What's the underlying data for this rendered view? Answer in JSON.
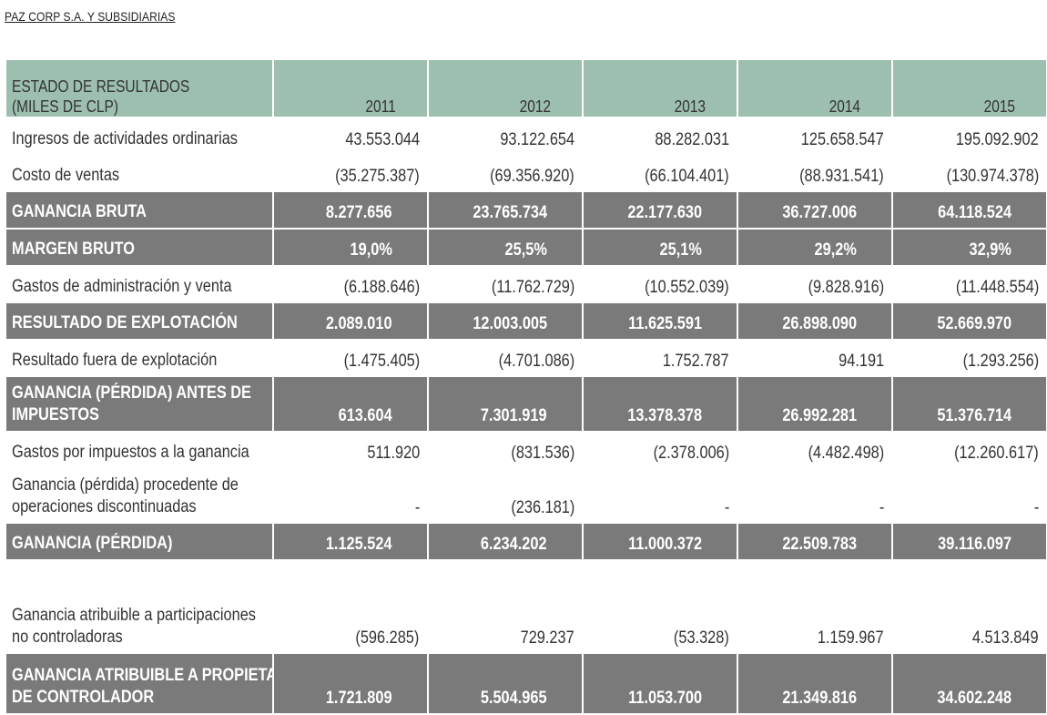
{
  "company": "PAZ CORP S.A. Y SUBSIDIARIAS",
  "header": {
    "label_line1": "ESTADO DE RESULTADOS",
    "label_line2": "(MILES DE CLP)",
    "years": [
      "2011",
      "2012",
      "2013",
      "2014",
      "2015"
    ]
  },
  "rows": [
    {
      "label": [
        "Ingresos de actividades ordinarias"
      ],
      "values": [
        "43.553.044",
        "93.122.654",
        "88.282.031",
        "125.658.547",
        "195.092.902"
      ],
      "highlight": false
    },
    {
      "label": [
        "Costo de ventas"
      ],
      "values": [
        "(35.275.387)",
        "(69.356.920)",
        "(66.104.401)",
        "(88.931.541)",
        "(130.974.378)"
      ],
      "highlight": false
    },
    {
      "label": [
        "GANANCIA BRUTA"
      ],
      "values": [
        "8.277.656",
        "23.765.734",
        "22.177.630",
        "36.727.006",
        "64.118.524"
      ],
      "highlight": true
    },
    {
      "label": [
        "MARGEN BRUTO"
      ],
      "values": [
        "19,0%",
        "25,5%",
        "25,1%",
        "29,2%",
        "32,9%"
      ],
      "highlight": true
    },
    {
      "label": [
        "Gastos de administración y venta"
      ],
      "values": [
        "(6.188.646)",
        "(11.762.729)",
        "(10.552.039)",
        "(9.828.916)",
        "(11.448.554)"
      ],
      "highlight": false
    },
    {
      "label": [
        "RESULTADO DE EXPLOTACIÓN"
      ],
      "values": [
        "2.089.010",
        "12.003.005",
        "11.625.591",
        "26.898.090",
        "52.669.970"
      ],
      "highlight": true
    },
    {
      "label": [
        "Resultado fuera de explotación"
      ],
      "values": [
        "(1.475.405)",
        "(4.701.086)",
        "1.752.787",
        "94.191",
        "(1.293.256)"
      ],
      "highlight": false
    },
    {
      "label": [
        "GANANCIA (PÉRDIDA) ANTES DE",
        "IMPUESTOS"
      ],
      "values": [
        "613.604",
        "7.301.919",
        "13.378.378",
        "26.992.281",
        "51.376.714"
      ],
      "highlight": true
    },
    {
      "label": [
        "Gastos por impuestos a la ganancia"
      ],
      "values": [
        "511.920",
        "(831.536)",
        "(2.378.006)",
        "(4.482.498)",
        "(12.260.617)"
      ],
      "highlight": false
    },
    {
      "label": [
        "Ganancia (pérdida) procedente de",
        "operaciones discontinuadas"
      ],
      "values": [
        "-",
        "(236.181)",
        "-",
        "-",
        "-"
      ],
      "highlight": false
    },
    {
      "label": [
        "GANANCIA (PÉRDIDA)"
      ],
      "values": [
        "1.125.524",
        "6.234.202",
        "11.000.372",
        "22.509.783",
        "39.116.097"
      ],
      "highlight": true
    },
    {
      "label": [
        "Ganancia atribuible a participaciones",
        "no controladoras"
      ],
      "values": [
        "(596.285)",
        "729.237",
        "(53.328)",
        "1.159.967",
        "4.513.849"
      ],
      "highlight": false
    },
    {
      "label": [
        "GANANCIA ATRIBUIBLE A PROPIETARIOS",
        "DE CONTROLADOR"
      ],
      "values": [
        "1.721.809",
        "5.504.965",
        "11.053.700",
        "21.349.816",
        "34.602.248"
      ],
      "highlight": true
    }
  ]
}
